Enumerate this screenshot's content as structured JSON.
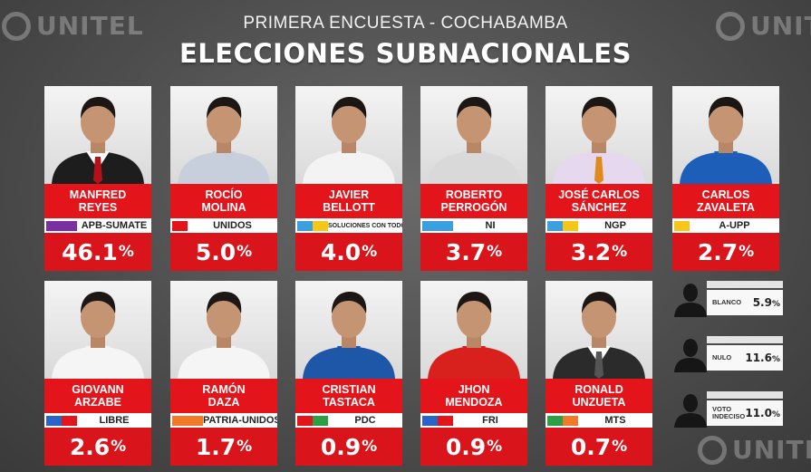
{
  "header": {
    "subtitle": "PRIMERA ENCUESTA - COCHABAMBA",
    "title": "ELECCIONES SUBNACIONALES"
  },
  "watermark": {
    "text": "UNITEL"
  },
  "colors": {
    "accent_red": "#e3151b",
    "background": "#4e4e4e"
  },
  "chart_data": {
    "type": "table",
    "unit": "%",
    "candidates": [
      {
        "name": "MANFRED\nREYES",
        "party": "APB-SUMATE",
        "value": 46.1,
        "pct_text": "46.1",
        "flag": [
          "#7b2fa0",
          "#7b2fa0"
        ],
        "suit": "#1d1d1d",
        "tie": "#b3121b",
        "shirt": "#ffffff"
      },
      {
        "name": "ROCÍO\nMOLINA",
        "party": "UNIDOS",
        "value": 5.0,
        "pct_text": "5.0",
        "flag": [
          "#e3151b"
        ],
        "suit": "#c8cfdc",
        "tie": null,
        "shirt": "#c8cfdc"
      },
      {
        "name": "JAVIER\nBELLOTT",
        "party": "SOLUCIONES CON TODOS",
        "value": 4.0,
        "pct_text": "4.0",
        "flag": [
          "#3aa0e0",
          "#f6c619"
        ],
        "suit": "#f3f3f3",
        "tie": null,
        "shirt": "#f3f3f3"
      },
      {
        "name": "ROBERTO\nPERROGÓN",
        "party": "NI",
        "value": 3.7,
        "pct_text": "3.7",
        "flag": [
          "#3aa0e0",
          "#3aa0e0"
        ],
        "suit": "#d9d9d9",
        "tie": null,
        "shirt": "#d9d9d9"
      },
      {
        "name": "JOSÉ CARLOS\nSÁNCHEZ",
        "party": "NGP",
        "value": 3.2,
        "pct_text": "3.2",
        "flag": [
          "#3aa0e0",
          "#f6c619"
        ],
        "suit": "#e6d8ef",
        "tie": "#e08a1e",
        "shirt": "#e6d8ef"
      },
      {
        "name": "CARLOS\nZAVALETA",
        "party": "A-UPP",
        "value": 2.7,
        "pct_text": "2.7",
        "flag": [
          "#f6c619"
        ],
        "suit": "#1d5fb8",
        "tie": null,
        "shirt": "#1d5fb8"
      },
      {
        "name": "GIOVANN\nARZABE",
        "party": "LIBRE",
        "value": 2.6,
        "pct_text": "2.6",
        "flag": [
          "#2a64c8",
          "#e3151b"
        ],
        "suit": "#f5f5f5",
        "tie": null,
        "shirt": "#f5f5f5"
      },
      {
        "name": "RAMÓN\nDAZA",
        "party": "PATRIA-UNIDOS",
        "value": 1.7,
        "pct_text": "1.7",
        "flag": [
          "#f07a2a",
          "#f07a2a"
        ],
        "suit": "#f5f5f5",
        "tie": null,
        "shirt": "#f5f5f5"
      },
      {
        "name": "CRISTIAN\nTASTACA",
        "party": "PDC",
        "value": 0.9,
        "pct_text": "0.9",
        "flag": [
          "#e3151b",
          "#2e9e44"
        ],
        "suit": "#1e56a8",
        "tie": null,
        "shirt": "#1e56a8"
      },
      {
        "name": "JHON\nMENDOZA",
        "party": "FRI",
        "value": 0.9,
        "pct_text": "0.9",
        "flag": [
          "#2a64c8",
          "#e3151b"
        ],
        "suit": "#d8201c",
        "tie": null,
        "shirt": "#d8201c"
      },
      {
        "name": "RONALD\nUNZUETA",
        "party": "MTS",
        "value": 0.7,
        "pct_text": "0.7",
        "flag": [
          "#2e9e44",
          "#f07a2a"
        ],
        "suit": "#2b2b2b",
        "tie": "#555555",
        "shirt": "#ffffff"
      }
    ],
    "others": [
      {
        "label": "BLANCO",
        "value": 5.9,
        "pct_text": "5.9"
      },
      {
        "label": "NULO",
        "value": 11.6,
        "pct_text": "11.6"
      },
      {
        "label": "VOTO\nINDECISO",
        "value": 11.0,
        "pct_text": "11.0"
      }
    ]
  }
}
